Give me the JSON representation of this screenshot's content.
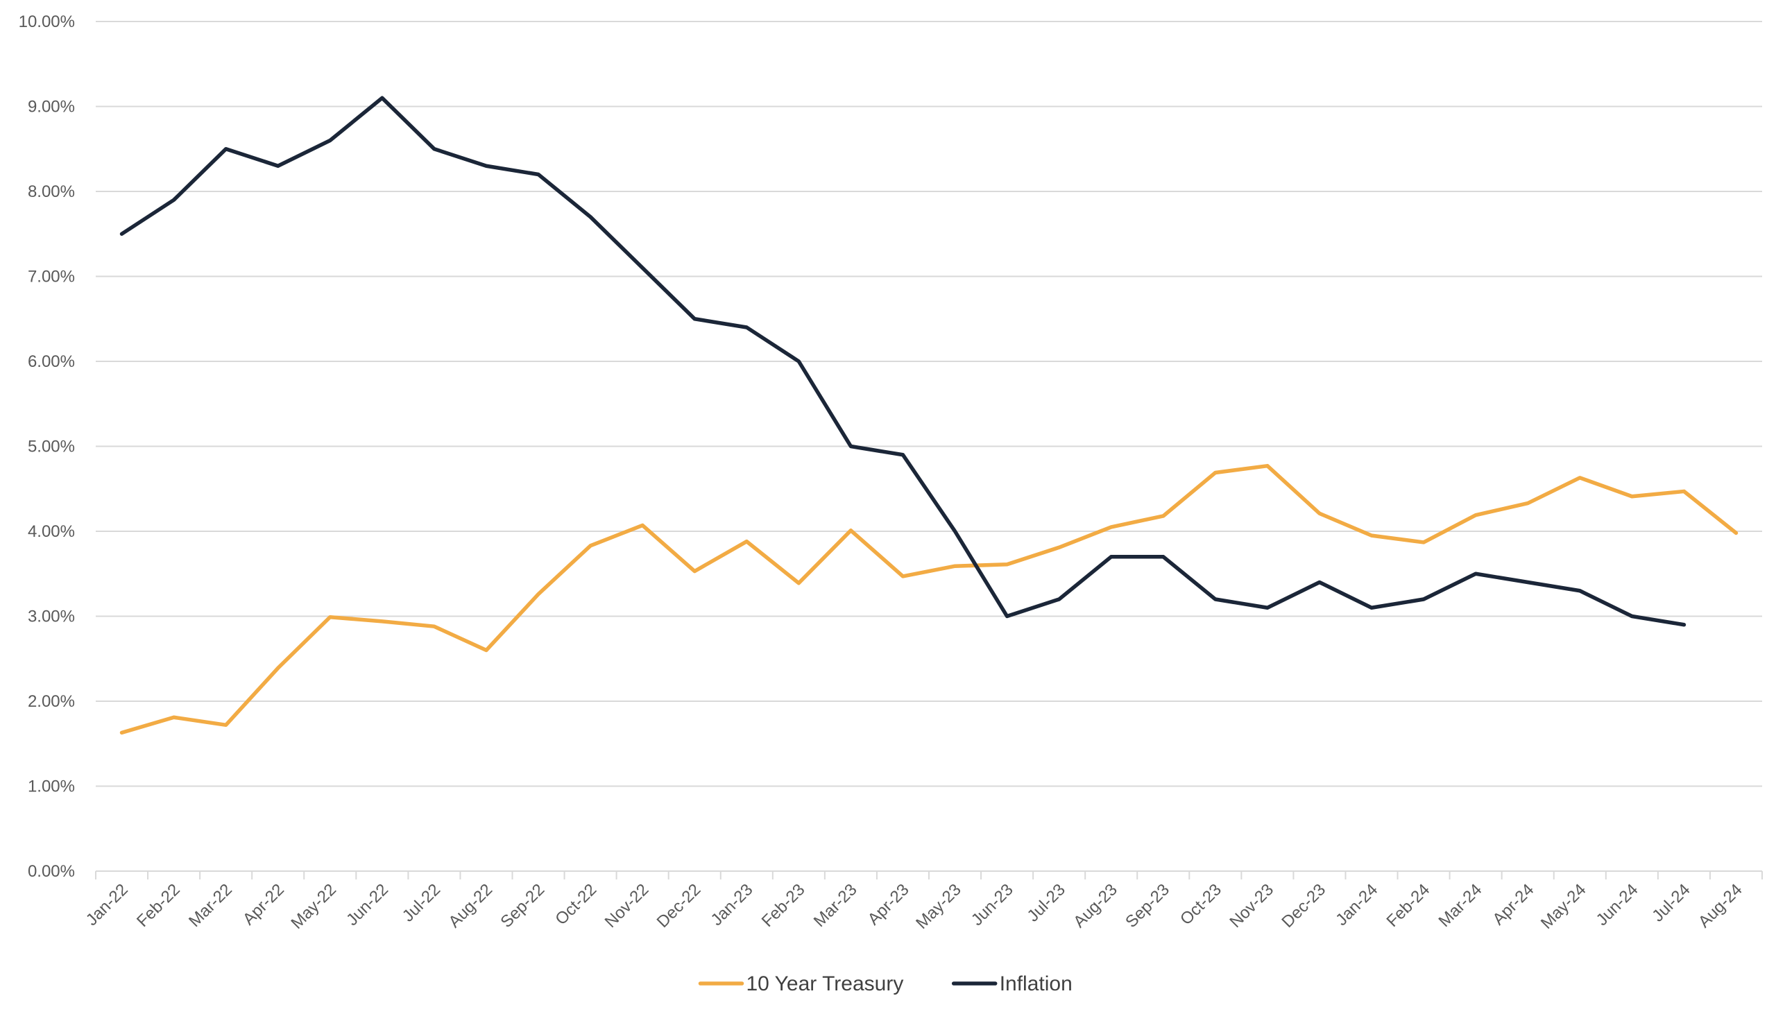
{
  "chart_data": {
    "type": "line",
    "title": "",
    "xlabel": "",
    "ylabel": "",
    "ylim": [
      0,
      10
    ],
    "y_ticks": [
      0,
      1,
      2,
      3,
      4,
      5,
      6,
      7,
      8,
      9,
      10
    ],
    "y_tick_labels": [
      "0.00%",
      "1.00%",
      "2.00%",
      "3.00%",
      "4.00%",
      "5.00%",
      "6.00%",
      "7.00%",
      "8.00%",
      "9.00%",
      "10.00%"
    ],
    "grid": true,
    "legend_position": "bottom-center",
    "categories": [
      "Jan-22",
      "Feb-22",
      "Mar-22",
      "Apr-22",
      "May-22",
      "Jun-22",
      "Jul-22",
      "Aug-22",
      "Sep-22",
      "Oct-22",
      "Nov-22",
      "Dec-22",
      "Jan-23",
      "Feb-23",
      "Mar-23",
      "Apr-23",
      "May-23",
      "Jun-23",
      "Jul-23",
      "Aug-23",
      "Sep-23",
      "Oct-23",
      "Nov-23",
      "Dec-23",
      "Jan-24",
      "Feb-24",
      "Mar-24",
      "Apr-24",
      "May-24",
      "Jun-24",
      "Jul-24",
      "Aug-24"
    ],
    "series": [
      {
        "name": "10 Year Treasury",
        "color": "#F2AB44",
        "values": [
          1.63,
          1.81,
          1.72,
          2.39,
          2.99,
          2.94,
          2.88,
          2.6,
          3.26,
          3.83,
          4.07,
          3.53,
          3.88,
          3.39,
          4.01,
          3.47,
          3.59,
          3.61,
          3.81,
          4.05,
          4.18,
          4.69,
          4.77,
          4.21,
          3.95,
          3.87,
          4.19,
          4.33,
          4.63,
          4.41,
          4.47,
          3.98
        ]
      },
      {
        "name": "Inflation",
        "color": "#1B2638",
        "values": [
          7.5,
          7.9,
          8.5,
          8.3,
          8.6,
          9.1,
          8.5,
          8.3,
          8.2,
          7.7,
          7.1,
          6.5,
          6.4,
          6.0,
          5.0,
          4.9,
          4.0,
          3.0,
          3.2,
          3.7,
          3.7,
          3.2,
          3.1,
          3.4,
          3.1,
          3.2,
          3.5,
          3.4,
          3.3,
          3.0,
          2.9,
          null
        ]
      }
    ]
  }
}
